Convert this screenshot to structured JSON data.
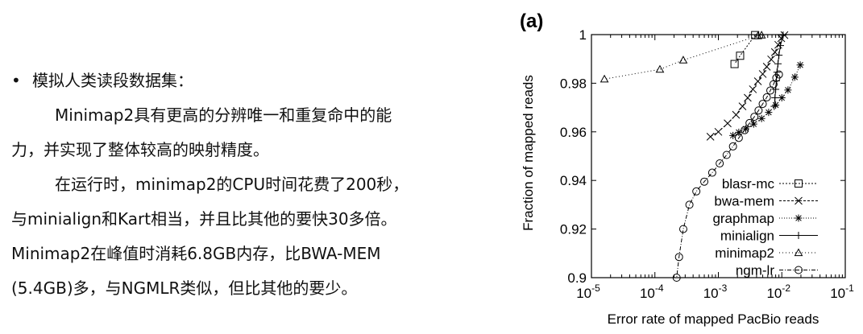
{
  "slide": {
    "bullet_symbol": "•",
    "heading": "模拟人类读段数据集：",
    "para1_line1": "Minimap2具有更高的分辨唯一和重复命中的能",
    "para1_line2": "力，并实现了整体较高的映射精度。",
    "para2_line1": "在运行时，minimap2的CPU时间花费了200秒，",
    "para2_line2": "与minialign和Kart相当，并且比其他的要快30多倍。",
    "para2_line3": "Minimap2在峰值时消耗6.8GB内存，比BWA-MEM",
    "para2_line4": "(5.4GB)多，与NGMLR类似，但比其他的要少。"
  },
  "chart_data": {
    "type": "line",
    "panel_label": "(a)",
    "title": "",
    "xlabel": "Error rate of mapped PacBio reads",
    "ylabel": "Fraction of mapped reads",
    "xscale": "log",
    "xlim": [
      1e-05,
      0.1
    ],
    "ylim": [
      0.9,
      1.0
    ],
    "x_tick_labels": [
      {
        "base": "10",
        "exp": "-5"
      },
      {
        "base": "10",
        "exp": "-4"
      },
      {
        "base": "10",
        "exp": "-3"
      },
      {
        "base": "10",
        "exp": "-2"
      },
      {
        "base": "10",
        "exp": "-1"
      }
    ],
    "y_ticks": [
      "0.9",
      "0.92",
      "0.94",
      "0.96",
      "0.98",
      "1"
    ],
    "legend_position": "bottom-right",
    "grid": false,
    "series": [
      {
        "name": "blasr-mc",
        "marker": "square",
        "dash": "2,2",
        "points": [
          [
            0.0038,
            0.9998
          ],
          [
            0.0022,
            0.9913
          ],
          [
            0.0018,
            0.9879
          ]
        ]
      },
      {
        "name": "bwa-mem",
        "marker": "x",
        "dash": "3,2",
        "points": [
          [
            0.011,
            0.9998
          ],
          [
            0.0098,
            0.9985
          ],
          [
            0.0088,
            0.9958
          ],
          [
            0.0078,
            0.9928
          ],
          [
            0.0068,
            0.9898
          ],
          [
            0.0058,
            0.9868
          ],
          [
            0.005,
            0.9838
          ],
          [
            0.0042,
            0.9808
          ],
          [
            0.0035,
            0.9775
          ],
          [
            0.0029,
            0.974
          ],
          [
            0.0024,
            0.9705
          ],
          [
            0.0019,
            0.967
          ],
          [
            0.0014,
            0.9635
          ],
          [
            0.001,
            0.96
          ],
          [
            0.00075,
            0.958
          ]
        ]
      },
      {
        "name": "graphmap",
        "marker": "star",
        "dash": "1,2",
        "points": [
          [
            0.0195,
            0.9875
          ],
          [
            0.016,
            0.9825
          ],
          [
            0.0125,
            0.9772
          ],
          [
            0.01,
            0.974
          ],
          [
            0.008,
            0.971
          ],
          [
            0.0062,
            0.968
          ],
          [
            0.0048,
            0.9655
          ],
          [
            0.0036,
            0.9632
          ],
          [
            0.0027,
            0.9612
          ],
          [
            0.0021,
            0.9598
          ],
          [
            0.0017,
            0.9585
          ]
        ]
      },
      {
        "name": "minialign",
        "marker": "plus",
        "dash": "",
        "points": [
          [
            0.0105,
            0.9998
          ],
          [
            0.0095,
            0.9955
          ],
          [
            0.009,
            0.9915
          ],
          [
            0.0087,
            0.988
          ],
          [
            0.0084,
            0.9845
          ],
          [
            0.0082,
            0.981
          ],
          [
            0.008,
            0.9775
          ],
          [
            0.0078,
            0.974
          ],
          [
            0.0076,
            0.9705
          ]
        ]
      },
      {
        "name": "minimap2",
        "marker": "triangle",
        "dash": "1,3",
        "points": [
          [
            0.0048,
            0.9998
          ],
          [
            0.0042,
            0.9995
          ],
          [
            0.00028,
            0.9895
          ],
          [
            0.00012,
            0.9857
          ],
          [
            1.6e-05,
            0.9817
          ]
        ]
      },
      {
        "name": "ngm-lr",
        "marker": "circle",
        "dash": "5,2,1,2",
        "points": [
          [
            0.009,
            0.9836
          ],
          [
            0.0082,
            0.9822
          ],
          [
            0.0074,
            0.9796
          ],
          [
            0.0066,
            0.977
          ],
          [
            0.0058,
            0.9742
          ],
          [
            0.005,
            0.9715
          ],
          [
            0.0043,
            0.9688
          ],
          [
            0.0037,
            0.9662
          ],
          [
            0.0031,
            0.9636
          ],
          [
            0.0026,
            0.9607
          ],
          [
            0.0021,
            0.9575
          ],
          [
            0.0017,
            0.954
          ],
          [
            0.00135,
            0.9505
          ],
          [
            0.00105,
            0.947
          ],
          [
            0.0008,
            0.9432
          ],
          [
            0.0006,
            0.9395
          ],
          [
            0.00045,
            0.9355
          ],
          [
            0.00035,
            0.93
          ],
          [
            0.00028,
            0.92
          ],
          [
            0.00024,
            0.9085
          ],
          [
            0.00022,
            0.9
          ]
        ]
      }
    ]
  }
}
